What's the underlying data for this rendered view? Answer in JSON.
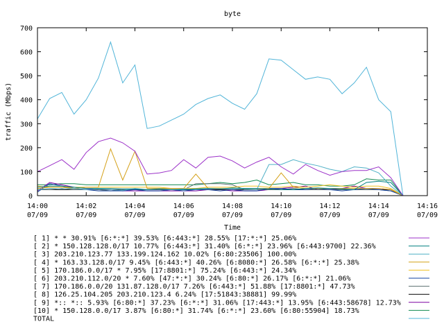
{
  "chart_data": {
    "type": "line",
    "title": "byte",
    "xlabel": "Time",
    "ylabel": "traffic (Mbps)",
    "ylim": [
      0,
      700
    ],
    "xlim": [
      0,
      16
    ],
    "yticks": [
      0,
      100,
      200,
      300,
      400,
      500,
      600,
      700
    ],
    "xticks": [
      {
        "t": 0,
        "time": "14:00",
        "date": "07/09"
      },
      {
        "t": 2,
        "time": "14:02",
        "date": "07/09"
      },
      {
        "t": 4,
        "time": "14:04",
        "date": "07/09"
      },
      {
        "t": 6,
        "time": "14:06",
        "date": "07/09"
      },
      {
        "t": 8,
        "time": "14:08",
        "date": "07/09"
      },
      {
        "t": 10,
        "time": "14:10",
        "date": "07/09"
      },
      {
        "t": 12,
        "time": "14:12",
        "date": "07/09"
      },
      {
        "t": 14,
        "time": "14:14",
        "date": "07/09"
      },
      {
        "t": 16,
        "time": "14:16",
        "date": "07/09"
      }
    ],
    "grid": false,
    "legend_position": "bottom",
    "x": [
      0,
      0.5,
      1,
      1.5,
      2,
      2.5,
      3,
      3.5,
      4,
      4.5,
      5,
      5.5,
      6,
      6.5,
      7,
      7.5,
      8,
      8.5,
      9,
      9.5,
      10,
      10.5,
      11,
      11.5,
      12,
      12.5,
      13,
      13.5,
      14,
      14.5,
      15
    ],
    "series": [
      {
        "name": "[ 1] * * 30.91%  [6:*:*] 39.53% [6:443:*] 28.55% [17:*:*] 25.06%",
        "color": "#9b30c8",
        "values": [
          100,
          125,
          150,
          110,
          180,
          225,
          240,
          220,
          185,
          90,
          95,
          105,
          150,
          115,
          160,
          165,
          145,
          115,
          140,
          160,
          120,
          90,
          130,
          105,
          85,
          100,
          105,
          105,
          120,
          75,
          0
        ]
      },
      {
        "name": "[ 2] * 150.128.128.0/17 10.77%  [6:443:*] 31.40% [6:*:*] 23.96% [6:443:9700] 22.36%",
        "color": "#008080",
        "values": [
          35,
          40,
          40,
          35,
          30,
          30,
          30,
          28,
          28,
          25,
          28,
          25,
          25,
          28,
          30,
          28,
          32,
          30,
          30,
          28,
          25,
          25,
          30,
          32,
          30,
          28,
          25,
          55,
          60,
          55,
          0
        ]
      },
      {
        "name": "[ 3] 203.210.123.77 133.199.124.162 10.02%  [6:80:23506] 100.00%",
        "color": "#4fb0c6",
        "values": [
          25,
          30,
          28,
          30,
          25,
          28,
          25,
          22,
          30,
          25,
          28,
          25,
          28,
          25,
          30,
          28,
          30,
          28,
          25,
          130,
          130,
          150,
          135,
          125,
          110,
          100,
          120,
          115,
          95,
          40,
          0
        ]
      },
      {
        "name": "[ 4] * 163.33.128.0/17 9.45%  [6:443:*] 40.26% [6:8080:*] 26.58% [6:*:*] 25.38%",
        "color": "#d4a017",
        "values": [
          30,
          35,
          35,
          30,
          35,
          35,
          195,
          65,
          185,
          30,
          30,
          30,
          30,
          90,
          30,
          30,
          30,
          30,
          30,
          30,
          95,
          35,
          30,
          30,
          30,
          30,
          30,
          30,
          30,
          25,
          0
        ]
      },
      {
        "name": "[ 5] 170.186.0.0/17 * 7.95%  [17:8801:*] 75.24% [6:443:*] 24.34%",
        "color": "#f0c020",
        "values": [
          40,
          35,
          35,
          35,
          35,
          35,
          35,
          35,
          35,
          35,
          35,
          30,
          30,
          30,
          35,
          35,
          35,
          40,
          40,
          35,
          35,
          40,
          35,
          40,
          45,
          40,
          35,
          40,
          40,
          30,
          0
        ]
      },
      {
        "name": "[ 6] 203.210.112.0/20 * 7.60%  [47:*:*] 30.24% [6:80:*] 26.17% [6:*:*] 21.06%",
        "color": "#1040a0",
        "values": [
          15,
          50,
          40,
          30,
          25,
          20,
          20,
          20,
          25,
          20,
          20,
          25,
          20,
          25,
          25,
          20,
          25,
          20,
          20,
          30,
          30,
          25,
          25,
          30,
          25,
          20,
          25,
          30,
          25,
          20,
          0
        ]
      },
      {
        "name": "[ 7] 170.186.0.0/20 131.87.128.0/17 7.26%  [6:443:*] 51.88% [17:8801:*] 47.73%",
        "color": "#5a6e6e",
        "values": [
          25,
          25,
          30,
          25,
          25,
          25,
          20,
          25,
          25,
          25,
          25,
          25,
          25,
          50,
          50,
          50,
          45,
          25,
          25,
          25,
          25,
          30,
          25,
          25,
          25,
          25,
          25,
          25,
          25,
          20,
          0
        ]
      },
      {
        "name": "[ 8] 126.25.104.205 203.210.123.4 6.24%  [17:51843:38881] 99.99%",
        "color": "#000000",
        "values": [
          25,
          25,
          25,
          25,
          25,
          25,
          25,
          25,
          25,
          25,
          25,
          25,
          25,
          25,
          25,
          25,
          25,
          25,
          25,
          25,
          25,
          25,
          25,
          25,
          25,
          25,
          25,
          25,
          25,
          25,
          0
        ]
      },
      {
        "name": "[ 9] *:: *:: 5.93%  [6:80:*] 37.23% [6:*:*] 31.06% [17:443:*] 13.95% [6:443:58678] 12.73%",
        "color": "#7a00a0",
        "values": [
          20,
          55,
          45,
          35,
          30,
          25,
          25,
          20,
          20,
          20,
          20,
          20,
          20,
          20,
          25,
          25,
          20,
          20,
          20,
          25,
          30,
          35,
          40,
          25,
          25,
          30,
          40,
          30,
          30,
          25,
          0
        ]
      },
      {
        "name": "[10] * 150.128.0.0/17 3.87%  [6:80:*] 31.74% [6:*:*] 23.60% [6:80:55904] 18.73%",
        "color": "#108a50",
        "values": [
          45,
          45,
          50,
          50,
          45,
          45,
          45,
          45,
          45,
          45,
          45,
          45,
          45,
          45,
          50,
          55,
          50,
          55,
          65,
          45,
          50,
          55,
          45,
          45,
          40,
          40,
          45,
          70,
          65,
          65,
          0
        ]
      },
      {
        "name": "TOTAL",
        "color": "#50b4d8",
        "values": [
          320,
          405,
          430,
          340,
          400,
          490,
          640,
          470,
          545,
          280,
          290,
          315,
          340,
          380,
          405,
          420,
          385,
          360,
          425,
          570,
          565,
          525,
          485,
          495,
          485,
          425,
          470,
          535,
          400,
          350,
          0
        ]
      }
    ]
  }
}
